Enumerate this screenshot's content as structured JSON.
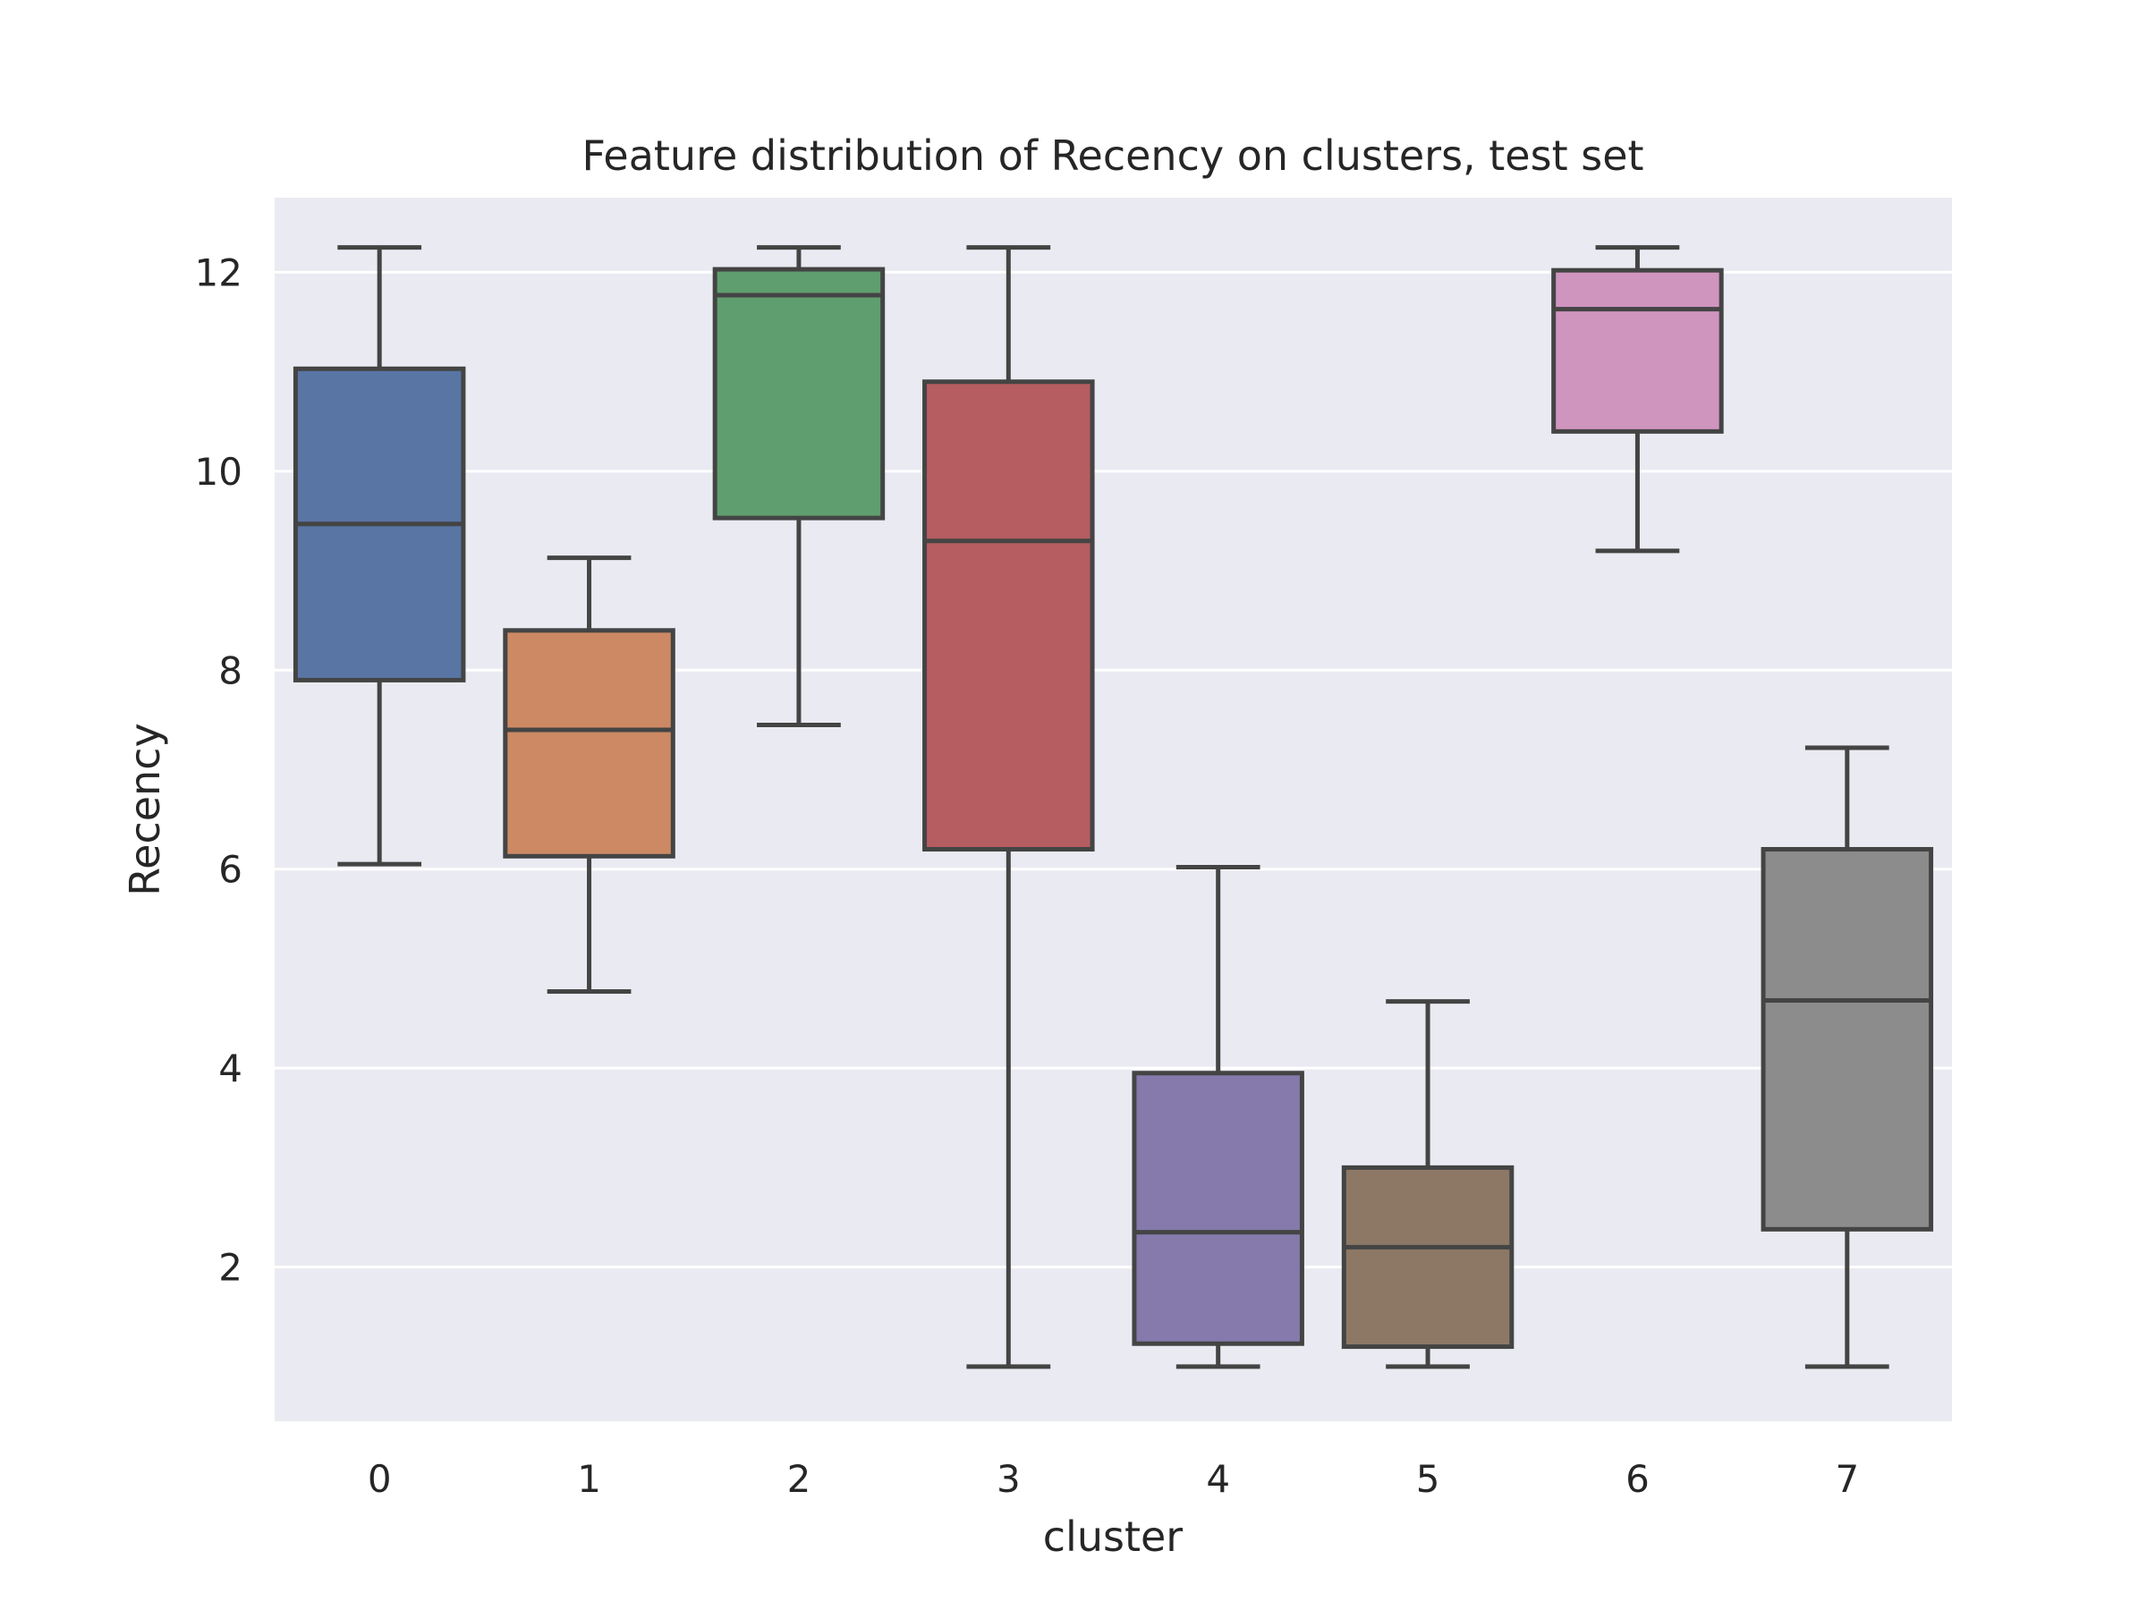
{
  "chart_data": {
    "type": "box",
    "title": "Feature distribution of Recency on clusters, test set",
    "xlabel": "cluster",
    "ylabel": "Recency",
    "ylim": [
      0.45,
      12.75
    ],
    "yticks": [
      2,
      4,
      6,
      8,
      10,
      12
    ],
    "grid": true,
    "background": "#eaeaf2",
    "categories": [
      "0",
      "1",
      "2",
      "3",
      "4",
      "5",
      "6",
      "7"
    ],
    "boxes": [
      {
        "category": "0",
        "whisker_low": 6.05,
        "q1": 7.9,
        "median": 9.47,
        "q3": 11.03,
        "whisker_high": 12.25,
        "color": "#5875a4"
      },
      {
        "category": "1",
        "whisker_low": 4.77,
        "q1": 6.13,
        "median": 7.4,
        "q3": 8.4,
        "whisker_high": 9.13,
        "color": "#cc8963"
      },
      {
        "category": "2",
        "whisker_low": 7.45,
        "q1": 9.53,
        "median": 11.77,
        "q3": 12.03,
        "whisker_high": 12.25,
        "color": "#5f9e6e"
      },
      {
        "category": "3",
        "whisker_low": 1.0,
        "q1": 6.2,
        "median": 9.3,
        "q3": 10.9,
        "whisker_high": 12.25,
        "color": "#b55d60"
      },
      {
        "category": "4",
        "whisker_low": 1.0,
        "q1": 1.23,
        "median": 2.35,
        "q3": 3.95,
        "whisker_high": 6.02,
        "color": "#857aab"
      },
      {
        "category": "5",
        "whisker_low": 1.0,
        "q1": 1.2,
        "median": 2.2,
        "q3": 3.0,
        "whisker_high": 4.67,
        "color": "#8d7866"
      },
      {
        "category": "6",
        "whisker_low": 9.2,
        "q1": 10.4,
        "median": 11.63,
        "q3": 12.02,
        "whisker_high": 12.25,
        "color": "#d095bf"
      },
      {
        "category": "7",
        "whisker_low": 1.0,
        "q1": 2.38,
        "median": 4.68,
        "q3": 6.2,
        "whisker_high": 7.22,
        "color": "#8c8c8c"
      }
    ]
  }
}
